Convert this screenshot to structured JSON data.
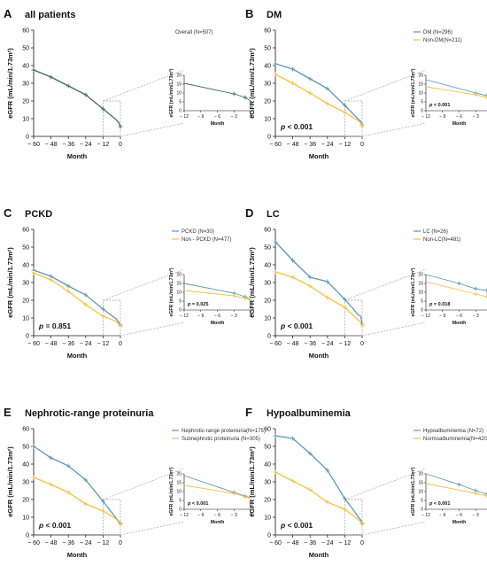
{
  "colors": {
    "blue": "#5e97b8",
    "orange": "#f5c242",
    "darkteal": "#3e6b66",
    "guide": "#9a9a9a"
  },
  "chart_data": [
    {
      "type": "line",
      "letter": "A",
      "title": "all patients",
      "xlabel": "Month",
      "ylabel": "eGFR (mL/min/1.73m²)",
      "x": [
        -60,
        -48,
        -36,
        -24,
        -12,
        0
      ],
      "ylim": [
        0,
        60
      ],
      "xticks": [
        "− 60",
        "− 48",
        "− 36",
        "− 24",
        "− 12",
        "0"
      ],
      "yticks": [
        "0",
        "10",
        "20",
        "30",
        "40",
        "50",
        "60"
      ],
      "pvalue": "",
      "inset_pvalue": "",
      "series": [
        {
          "name": "Overall (N=507)",
          "color": "darkteal",
          "x": [
            -60,
            -48,
            -36,
            -24,
            -12,
            -3,
            -1,
            0
          ],
          "y": [
            37.5,
            33.5,
            28.5,
            23.5,
            15.5,
            9.5,
            7.5,
            5.5
          ]
        }
      ],
      "inset": {
        "xlabel": "Month",
        "ylabel": "eGFR (mL/min/1.73m²)",
        "xlim": [
          -12,
          0
        ],
        "ylim": [
          0,
          20
        ],
        "xticks": [
          "− 12",
          "− 9",
          "− 6",
          "− 3",
          "0"
        ],
        "yticks": [
          "0",
          "5",
          "10",
          "15",
          "20"
        ]
      }
    },
    {
      "type": "line",
      "letter": "B",
      "title": "DM",
      "xlabel": "Month",
      "ylabel": "eGFR (mL/min/1.73m²)",
      "x": [
        -60,
        -48,
        -36,
        -24,
        -12,
        0
      ],
      "ylim": [
        0,
        60
      ],
      "xticks": [
        "− 60",
        "− 48",
        "− 36",
        "− 24",
        "− 12",
        "0"
      ],
      "yticks": [
        "0",
        "10",
        "20",
        "30",
        "40",
        "50",
        "60"
      ],
      "pvalue": "p < 0.001",
      "inset_pvalue": "p < 0.001",
      "series": [
        {
          "name": "DM (N=296)",
          "color": "blue",
          "x": [
            -60,
            -48,
            -36,
            -24,
            -12,
            -3,
            -1,
            0
          ],
          "y": [
            41,
            38,
            32.5,
            27,
            17.5,
            10,
            8.5,
            6.5
          ]
        },
        {
          "name": "Non-DM(N=211)",
          "color": "orange",
          "x": [
            -60,
            -48,
            -36,
            -24,
            -12,
            -3,
            -1,
            0
          ],
          "y": [
            35,
            30,
            24.5,
            18.5,
            13.5,
            9,
            7.5,
            5.5
          ]
        }
      ],
      "inset": {
        "xlabel": "Month",
        "ylabel": "eGFR (mL/min/1.73m²)",
        "xlim": [
          -12,
          0
        ],
        "ylim": [
          0,
          20
        ],
        "xticks": [
          "− 12",
          "− 9",
          "− 6",
          "− 3",
          "0"
        ],
        "yticks": [
          "0",
          "5",
          "10",
          "15",
          "20"
        ]
      }
    },
    {
      "type": "line",
      "letter": "C",
      "title": "PCKD",
      "xlabel": "Month",
      "ylabel": "eGFR (mL/min/1.73m²)",
      "x": [
        -60,
        -48,
        -36,
        -24,
        -12,
        0
      ],
      "ylim": [
        0,
        60
      ],
      "xticks": [
        "− 60",
        "− 48",
        "− 36",
        "− 24",
        "− 12",
        "0"
      ],
      "yticks": [
        "0",
        "10",
        "20",
        "30",
        "40",
        "50",
        "60"
      ],
      "pvalue": "p = 0.851",
      "inset_pvalue": "p = 0.025",
      "series": [
        {
          "name": "PCKD (N=30)",
          "color": "blue",
          "x": [
            -60,
            -48,
            -36,
            -24,
            -12,
            -3,
            -1,
            0
          ],
          "y": [
            37,
            33.5,
            28,
            23,
            15,
            9.5,
            7.5,
            6
          ]
        },
        {
          "name": "Non - PCKD (N=477)",
          "color": "orange",
          "x": [
            -60,
            -48,
            -36,
            -24,
            -12,
            -3,
            -1,
            0
          ],
          "y": [
            35.5,
            31.5,
            25,
            17.5,
            11,
            8,
            6.5,
            5.5
          ]
        }
      ],
      "inset": {
        "xlabel": "Month",
        "ylabel": "eGFR (mL/min/1.73m²)",
        "xlim": [
          -12,
          0
        ],
        "ylim": [
          0,
          20
        ],
        "xticks": [
          "− 12",
          "− 9",
          "− 6",
          "− 3",
          "0"
        ],
        "yticks": [
          "0",
          "5",
          "10",
          "15",
          "20"
        ]
      }
    },
    {
      "type": "line",
      "letter": "D",
      "title": "LC",
      "xlabel": "Month",
      "ylabel": "eGFR (mL/min/1.73m²)",
      "x": [
        -60,
        -48,
        -36,
        -24,
        -12,
        0
      ],
      "ylim": [
        0,
        60
      ],
      "xticks": [
        "− 60",
        "− 48",
        "− 36",
        "− 24",
        "− 12",
        "0"
      ],
      "yticks": [
        "0",
        "10",
        "20",
        "30",
        "40",
        "50",
        "60"
      ],
      "pvalue": "p < 0.001",
      "inset_pvalue": "p = 0.018",
      "series": [
        {
          "name": "LC (N=26)",
          "color": "blue",
          "x": [
            -60,
            -48,
            -36,
            -24,
            -12,
            -6,
            -3,
            -1,
            0
          ],
          "y": [
            53,
            42.5,
            33,
            30.5,
            20.5,
            15,
            12,
            11,
            6.5
          ]
        },
        {
          "name": "Non-LC(N=481)",
          "color": "orange",
          "x": [
            -60,
            -48,
            -36,
            -24,
            -12,
            -3,
            -1,
            0
          ],
          "y": [
            36,
            33,
            28,
            21.5,
            16,
            9,
            7.5,
            5.5
          ]
        }
      ],
      "inset": {
        "xlabel": "Month",
        "ylabel": "eGFR (mL/min/1.73m²)",
        "xlim": [
          -12,
          0
        ],
        "ylim": [
          0,
          20
        ],
        "xticks": [
          "− 12",
          "− 9",
          "− 6",
          "− 3",
          "0"
        ],
        "yticks": [
          "0",
          "5",
          "10",
          "15",
          "20"
        ]
      }
    },
    {
      "type": "line",
      "letter": "E",
      "title": "Nephrotic-range proteinuria",
      "xlabel": "Month",
      "ylabel": "eGFR (mL/min/1.73m²)",
      "x": [
        -60,
        -48,
        -36,
        -24,
        -12,
        0
      ],
      "ylim": [
        0,
        60
      ],
      "xticks": [
        "− 60",
        "− 48",
        "− 36",
        "− 24",
        "− 12",
        "0"
      ],
      "yticks": [
        "0",
        "10",
        "20",
        "30",
        "40",
        "50",
        "60"
      ],
      "pvalue": "p < 0.001",
      "inset_pvalue": "p < 0.001",
      "series": [
        {
          "name": "Nephrotic-range proteinuria(N=175)",
          "color": "blue",
          "x": [
            -60,
            -48,
            -36,
            -24,
            -12,
            -3,
            -1,
            0
          ],
          "y": [
            50,
            43.5,
            39,
            31,
            19,
            9.5,
            7.5,
            6.5
          ]
        },
        {
          "name": "Subnephrotic proteinuria (N=305)",
          "color": "orange",
          "x": [
            -60,
            -48,
            -36,
            -24,
            -12,
            -3,
            -1,
            0
          ],
          "y": [
            32.5,
            28.5,
            24,
            17.5,
            13.5,
            9,
            7,
            6
          ]
        }
      ],
      "inset": {
        "xlabel": "Month",
        "ylabel": "eGFR (mL/min/1.73m²)",
        "xlim": [
          -12,
          0
        ],
        "ylim": [
          0,
          20
        ],
        "xticks": [
          "− 12",
          "− 9",
          "− 6",
          "− 3",
          "0"
        ],
        "yticks": [
          "0",
          "5",
          "10",
          "15",
          "20"
        ]
      }
    },
    {
      "type": "line",
      "letter": "F",
      "title": "Hypoalbuminemia",
      "xlabel": "Month",
      "ylabel": "eGFR (mL/min/1.73m²)",
      "x": [
        -60,
        -48,
        -36,
        -24,
        -12,
        0
      ],
      "ylim": [
        0,
        60
      ],
      "xticks": [
        "− 60",
        "− 48",
        "− 36",
        "− 24",
        "− 12",
        "0"
      ],
      "yticks": [
        "0",
        "10",
        "20",
        "30",
        "40",
        "50",
        "60"
      ],
      "pvalue": "p < 0.001",
      "inset_pvalue": "p < 0.001",
      "series": [
        {
          "name": "Hypoalbuminemia (N=72)",
          "color": "blue",
          "x": [
            -60,
            -48,
            -36,
            -24,
            -12,
            -6,
            -3,
            -1,
            0
          ],
          "y": [
            56,
            54.5,
            46,
            36.5,
            20.5,
            14,
            10.5,
            8.5,
            6.5
          ]
        },
        {
          "name": "Normoalbuminemia(N=420)",
          "color": "orange",
          "x": [
            -60,
            -48,
            -36,
            -24,
            -12,
            -3,
            -1,
            0
          ],
          "y": [
            35.5,
            30.5,
            25.5,
            18.5,
            14.5,
            9,
            7.5,
            6
          ]
        }
      ],
      "inset": {
        "xlabel": "Month",
        "ylabel": "eGFR (mL/min/1.73m²)",
        "xlim": [
          -12,
          0
        ],
        "ylim": [
          0,
          20
        ],
        "xticks": [
          "− 12",
          "− 9",
          "− 6",
          "− 3",
          "0"
        ],
        "yticks": [
          "0",
          "5",
          "10",
          "15",
          "20"
        ]
      }
    }
  ]
}
